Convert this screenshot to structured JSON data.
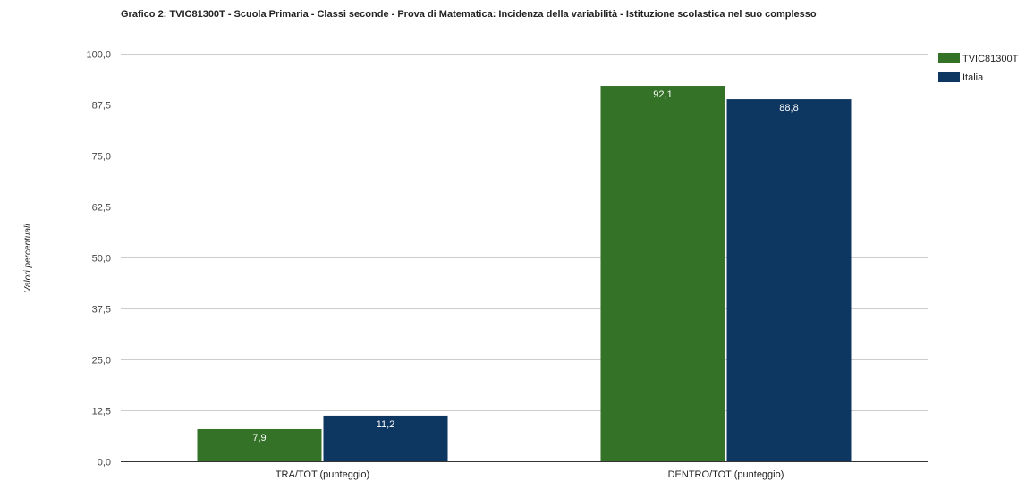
{
  "chart_data": {
    "type": "bar",
    "title": "Grafico 2: TVIC81300T - Scuola Primaria - Classi seconde - Prova di Matematica: Incidenza della variabilità - Istituzione scolastica nel suo complesso",
    "xlabel": "",
    "ylabel": "Valori percentuali",
    "ylim": [
      0,
      100
    ],
    "yticks": [
      "0,0",
      "12,5",
      "25,0",
      "37,5",
      "50,0",
      "62,5",
      "75,0",
      "87,5",
      "100,0"
    ],
    "categories": [
      "TRA/TOT (punteggio)",
      "DENTRO/TOT (punteggio)"
    ],
    "series": [
      {
        "name": "TVIC81300T",
        "color": "#347327",
        "values": [
          7.9,
          92.1
        ],
        "labels": [
          "7,9",
          "92,1"
        ]
      },
      {
        "name": "Italia",
        "color": "#0d3661",
        "values": [
          11.2,
          88.8
        ],
        "labels": [
          "11,2",
          "88,8"
        ]
      }
    ],
    "grid": true,
    "legend_position": "top-right"
  }
}
